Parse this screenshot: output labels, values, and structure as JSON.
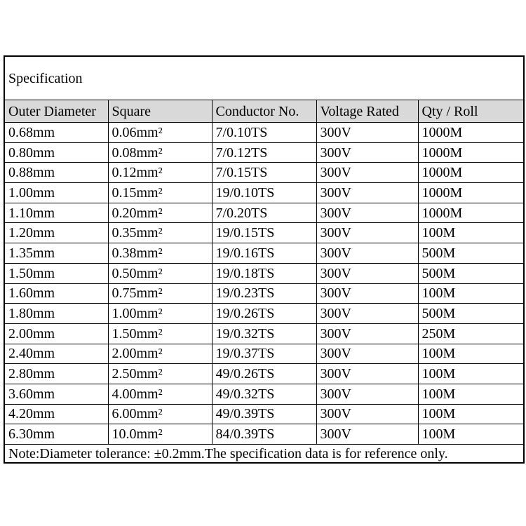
{
  "title": "Specification",
  "table": {
    "headers": [
      "Outer Diameter",
      "Square",
      "Conductor No.",
      "Voltage Rated",
      "Qty / Roll"
    ],
    "rows": [
      [
        "0.68mm",
        "0.06mm²",
        "7/0.10TS",
        "300V",
        "1000M"
      ],
      [
        "0.80mm",
        "0.08mm²",
        "7/0.12TS",
        "300V",
        "1000M"
      ],
      [
        "0.88mm",
        "0.12mm²",
        "7/0.15TS",
        "300V",
        "1000M"
      ],
      [
        "1.00mm",
        "0.15mm²",
        "19/0.10TS",
        "300V",
        "1000M"
      ],
      [
        "1.10mm",
        "0.20mm²",
        "7/0.20TS",
        "300V",
        "1000M"
      ],
      [
        "1.20mm",
        "0.35mm²",
        "19/0.15TS",
        "300V",
        "100M"
      ],
      [
        "1.35mm",
        "0.38mm²",
        "19/0.16TS",
        "300V",
        "500M"
      ],
      [
        "1.50mm",
        "0.50mm²",
        "19/0.18TS",
        "300V",
        "500M"
      ],
      [
        "1.60mm",
        "0.75mm²",
        "19/0.23TS",
        "300V",
        "100M"
      ],
      [
        "1.80mm",
        "1.00mm²",
        "19/0.26TS",
        "300V",
        "500M"
      ],
      [
        "2.00mm",
        "1.50mm²",
        "19/0.32TS",
        "300V",
        "250M"
      ],
      [
        "2.40mm",
        "2.00mm²",
        "19/0.37TS",
        "300V",
        "100M"
      ],
      [
        "2.80mm",
        "2.50mm²",
        "49/0.26TS",
        "300V",
        "100M"
      ],
      [
        "3.60mm",
        "4.00mm²",
        "49/0.32TS",
        "300V",
        "100M"
      ],
      [
        "4.20mm",
        "6.00mm²",
        "49/0.39TS",
        "300V",
        "100M"
      ],
      [
        "6.30mm",
        "10.0mm²",
        "84/0.39TS",
        "300V",
        "100M"
      ]
    ],
    "note": "Note:Diameter tolerance: ±0.2mm.The specification data is for reference only."
  },
  "colors": {
    "header_bg": "#d9d9d9",
    "border": "#000000",
    "text": "#000000",
    "background": "#ffffff"
  }
}
